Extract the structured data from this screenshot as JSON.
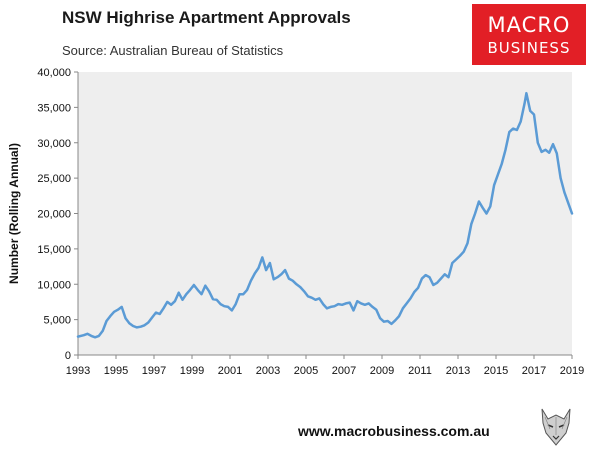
{
  "header": {
    "title": "NSW Highrise Apartment Approvals",
    "subtitle": "Source: Australian Bureau of Statistics"
  },
  "logo": {
    "line1": "MACRO",
    "line2": "BUSINESS",
    "color": "#e21f26"
  },
  "footer": {
    "url": "www.macrobusiness.com.au"
  },
  "chart_data": {
    "type": "line",
    "title": "NSW Highrise Apartment Approvals",
    "subtitle": "Source: Australian Bureau of Statistics",
    "xlabel": "",
    "ylabel": "Number (Rolling Annual)",
    "xlim": [
      1993,
      2019
    ],
    "ylim": [
      0,
      40000
    ],
    "x_ticks": [
      "1993",
      "1995",
      "1997",
      "1999",
      "2001",
      "2003",
      "2005",
      "2007",
      "2009",
      "2011",
      "2013",
      "2015",
      "2017",
      "2019"
    ],
    "y_ticks": [
      "0",
      "5,000",
      "10,000",
      "15,000",
      "20,000",
      "25,000",
      "30,000",
      "35,000",
      "40,000"
    ],
    "grid": false,
    "plot_background": "#eeeeee",
    "line_color": "#5b9bd5",
    "series": [
      {
        "values": [
          [
            1993.0,
            2600
          ],
          [
            1993.3,
            2800
          ],
          [
            1993.5,
            3000
          ],
          [
            1993.7,
            2700
          ],
          [
            1993.9,
            2500
          ],
          [
            1994.1,
            2700
          ],
          [
            1994.3,
            3400
          ],
          [
            1994.5,
            4800
          ],
          [
            1994.7,
            5500
          ],
          [
            1994.9,
            6100
          ],
          [
            1995.1,
            6400
          ],
          [
            1995.3,
            6800
          ],
          [
            1995.5,
            5200
          ],
          [
            1995.7,
            4500
          ],
          [
            1995.9,
            4100
          ],
          [
            1996.1,
            3900
          ],
          [
            1996.3,
            4000
          ],
          [
            1996.5,
            4200
          ],
          [
            1996.7,
            4600
          ],
          [
            1996.9,
            5300
          ],
          [
            1997.1,
            6000
          ],
          [
            1997.3,
            5800
          ],
          [
            1997.5,
            6600
          ],
          [
            1997.7,
            7500
          ],
          [
            1997.9,
            7100
          ],
          [
            1998.1,
            7600
          ],
          [
            1998.3,
            8800
          ],
          [
            1998.5,
            7800
          ],
          [
            1998.7,
            8600
          ],
          [
            1998.9,
            9200
          ],
          [
            1999.1,
            9900
          ],
          [
            1999.3,
            9200
          ],
          [
            1999.5,
            8600
          ],
          [
            1999.7,
            9800
          ],
          [
            1999.9,
            9000
          ],
          [
            2000.1,
            7900
          ],
          [
            2000.3,
            7800
          ],
          [
            2000.5,
            7200
          ],
          [
            2000.7,
            6900
          ],
          [
            2000.9,
            6800
          ],
          [
            2001.1,
            6300
          ],
          [
            2001.3,
            7200
          ],
          [
            2001.5,
            8600
          ],
          [
            2001.7,
            8600
          ],
          [
            2001.9,
            9200
          ],
          [
            2002.1,
            10500
          ],
          [
            2002.3,
            11500
          ],
          [
            2002.5,
            12300
          ],
          [
            2002.7,
            13800
          ],
          [
            2002.9,
            12000
          ],
          [
            2003.1,
            13000
          ],
          [
            2003.3,
            10700
          ],
          [
            2003.5,
            11000
          ],
          [
            2003.7,
            11400
          ],
          [
            2003.9,
            12000
          ],
          [
            2004.1,
            10800
          ],
          [
            2004.3,
            10500
          ],
          [
            2004.5,
            10000
          ],
          [
            2004.7,
            9600
          ],
          [
            2004.9,
            9000
          ],
          [
            2005.1,
            8300
          ],
          [
            2005.3,
            8100
          ],
          [
            2005.5,
            7800
          ],
          [
            2005.7,
            8000
          ],
          [
            2005.9,
            7200
          ],
          [
            2006.1,
            6600
          ],
          [
            2006.3,
            6800
          ],
          [
            2006.5,
            6900
          ],
          [
            2006.7,
            7200
          ],
          [
            2006.9,
            7100
          ],
          [
            2007.1,
            7300
          ],
          [
            2007.3,
            7400
          ],
          [
            2007.5,
            6300
          ],
          [
            2007.7,
            7600
          ],
          [
            2007.9,
            7300
          ],
          [
            2008.1,
            7100
          ],
          [
            2008.3,
            7300
          ],
          [
            2008.5,
            6800
          ],
          [
            2008.7,
            6400
          ],
          [
            2008.9,
            5200
          ],
          [
            2009.1,
            4700
          ],
          [
            2009.3,
            4800
          ],
          [
            2009.5,
            4400
          ],
          [
            2009.7,
            4900
          ],
          [
            2009.9,
            5500
          ],
          [
            2010.1,
            6600
          ],
          [
            2010.3,
            7300
          ],
          [
            2010.5,
            8000
          ],
          [
            2010.7,
            8900
          ],
          [
            2010.9,
            9500
          ],
          [
            2011.1,
            10800
          ],
          [
            2011.3,
            11300
          ],
          [
            2011.5,
            11000
          ],
          [
            2011.7,
            9900
          ],
          [
            2011.9,
            10200
          ],
          [
            2012.1,
            10800
          ],
          [
            2012.3,
            11400
          ],
          [
            2012.5,
            11000
          ],
          [
            2012.7,
            13000
          ],
          [
            2012.9,
            13500
          ],
          [
            2013.1,
            14000
          ],
          [
            2013.3,
            14600
          ],
          [
            2013.5,
            15800
          ],
          [
            2013.7,
            18500
          ],
          [
            2013.9,
            20000
          ],
          [
            2014.1,
            21700
          ],
          [
            2014.3,
            20800
          ],
          [
            2014.5,
            20000
          ],
          [
            2014.7,
            21000
          ],
          [
            2014.9,
            24000
          ],
          [
            2015.1,
            25500
          ],
          [
            2015.3,
            27000
          ],
          [
            2015.5,
            29000
          ],
          [
            2015.7,
            31500
          ],
          [
            2015.9,
            32000
          ],
          [
            2016.1,
            31800
          ],
          [
            2016.3,
            33000
          ],
          [
            2016.5,
            35500
          ],
          [
            2016.6,
            37000
          ],
          [
            2016.8,
            34500
          ],
          [
            2017.0,
            34000
          ],
          [
            2017.2,
            30000
          ],
          [
            2017.4,
            28700
          ],
          [
            2017.6,
            29000
          ],
          [
            2017.8,
            28600
          ],
          [
            2018.0,
            29800
          ],
          [
            2018.2,
            28500
          ],
          [
            2018.4,
            25000
          ],
          [
            2018.6,
            23000
          ],
          [
            2018.8,
            21500
          ],
          [
            2019.0,
            20000
          ]
        ]
      }
    ]
  }
}
